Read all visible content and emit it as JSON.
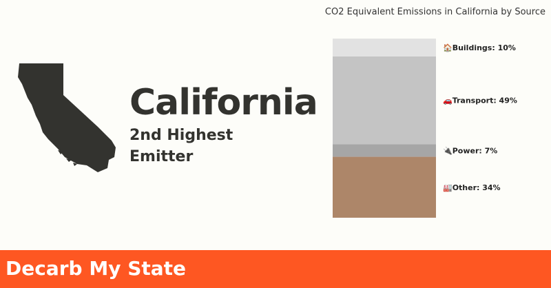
{
  "headline": {
    "state_name": "California",
    "rank_line1": "2nd Highest",
    "rank_line2": "Emitter"
  },
  "chart_title": "CO2 Equivalent Emissions in California by Source",
  "chart_data": {
    "type": "bar",
    "stacked": true,
    "title": "CO2 Equivalent Emissions in California by Source",
    "categories": [
      "California"
    ],
    "series": [
      {
        "name": "Buildings",
        "value": 10,
        "icon": "house-icon",
        "label": "🏠Buildings: 10%",
        "color": "#e2e2e2"
      },
      {
        "name": "Transport",
        "value": 49,
        "icon": "car-icon",
        "label": "🚗Transport: 49%",
        "color": "#c4c4c4"
      },
      {
        "name": "Power",
        "value": 7,
        "icon": "plug-icon",
        "label": "🔌Power: 7%",
        "color": "#a6a6a6"
      },
      {
        "name": "Other",
        "value": 34,
        "icon": "factory-icon",
        "label": "🏭Other: 34%",
        "color": "#ad8669"
      }
    ],
    "unit": "%",
    "total": 100
  },
  "footer": {
    "brand": "Decarb My State",
    "color": "#fe5722"
  }
}
